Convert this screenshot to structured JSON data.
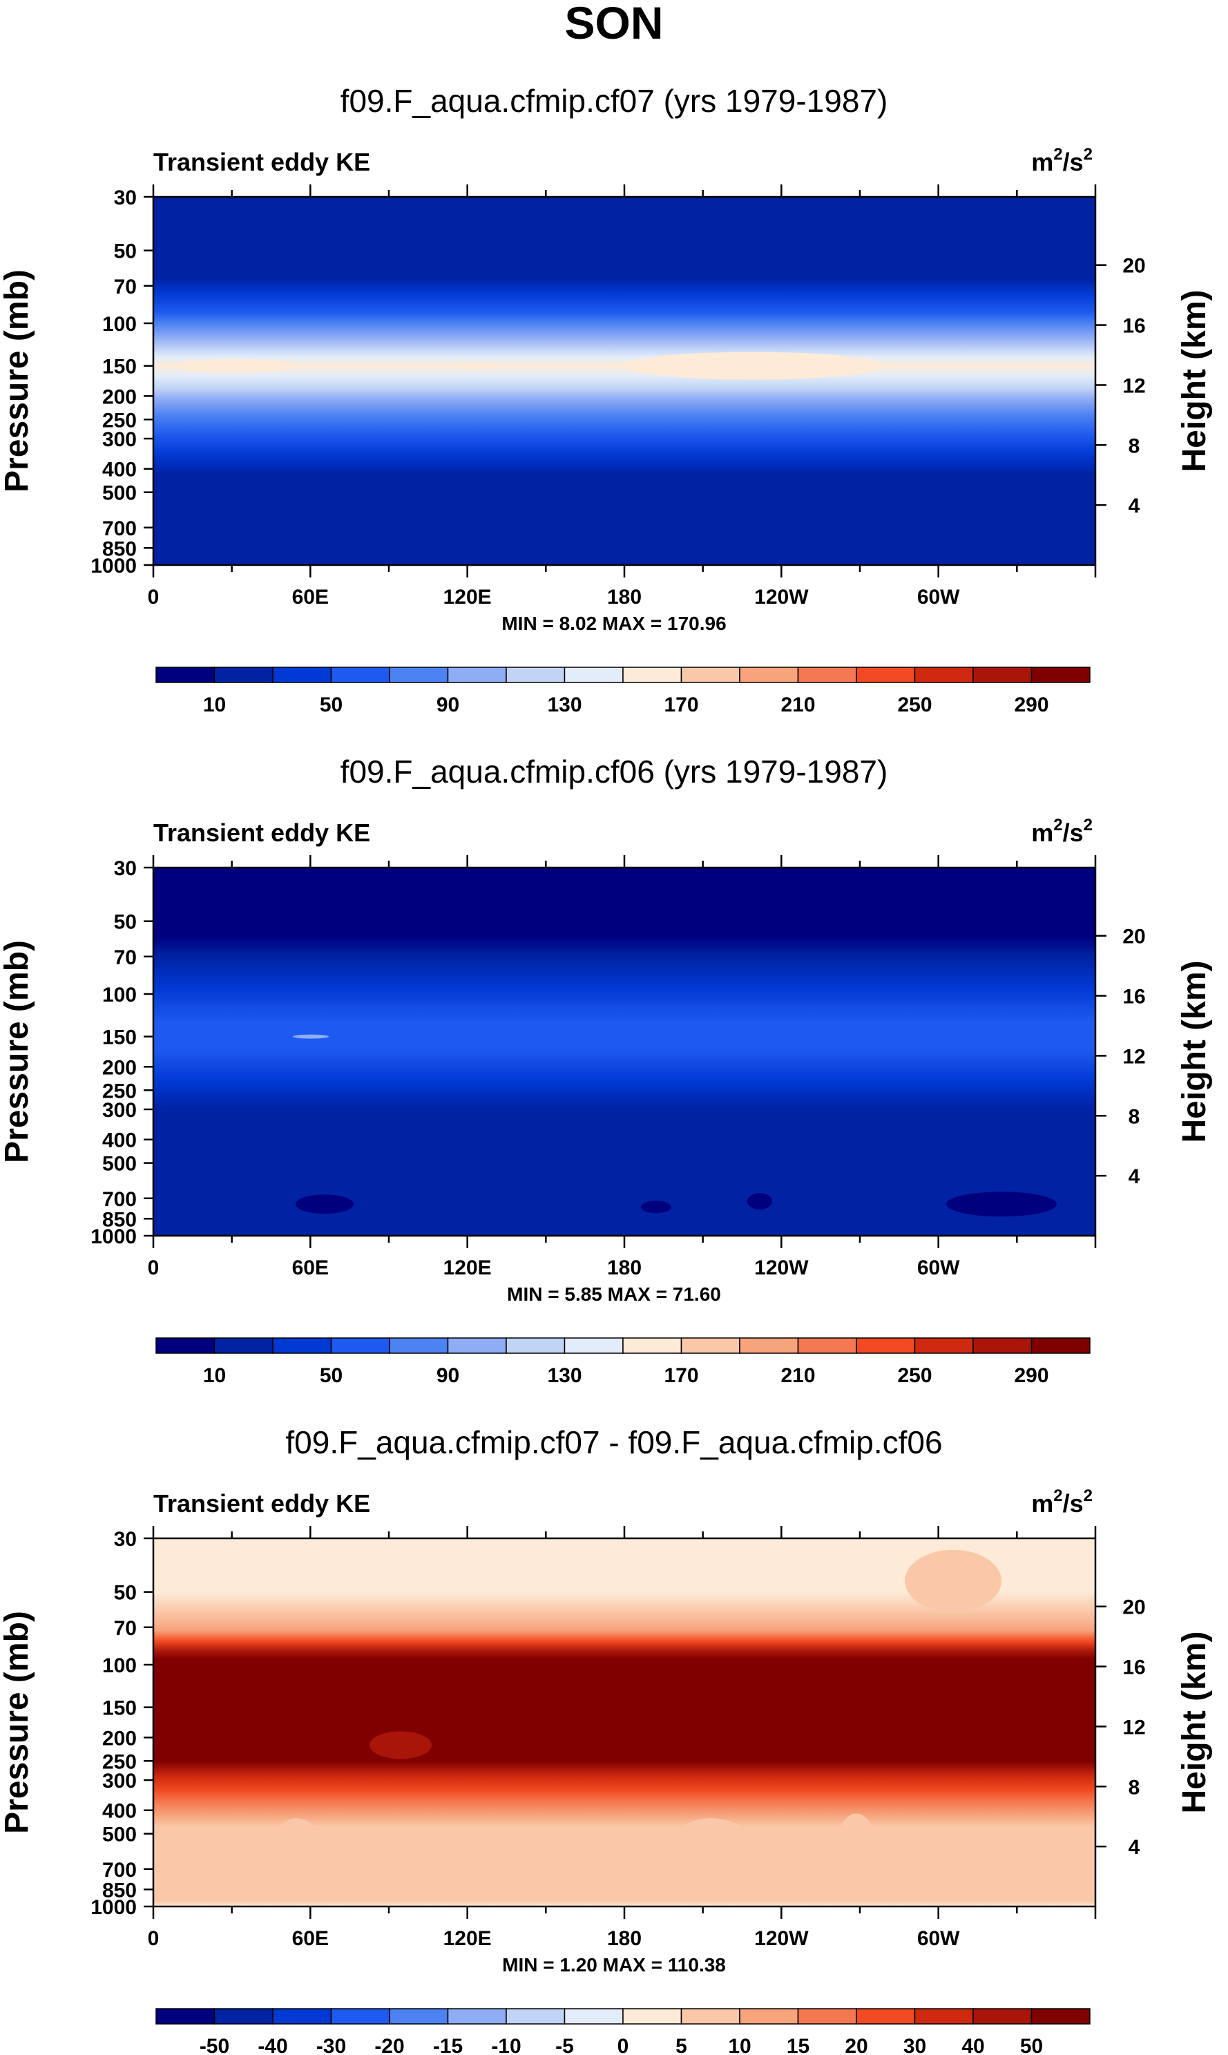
{
  "title": "SON",
  "chart_data": [
    {
      "type": "heatmap",
      "title": "f09.F_aqua.cfmip.cf07 (yrs 1979-1987)",
      "variable": "Transient eddy KE",
      "units": {
        "base": "m",
        "exp1": "2",
        "sep": "/s",
        "exp2": "2"
      },
      "xlabel": "",
      "ylabel": "Pressure (mb)",
      "ylabel_right": "Height (km)",
      "x_ticks": [
        "0",
        "60E",
        "120E",
        "180",
        "120W",
        "60W"
      ],
      "y_ticks": [
        "30",
        "50",
        "70",
        "100",
        "150",
        "200",
        "250",
        "300",
        "400",
        "500",
        "700",
        "850",
        "1000"
      ],
      "y_right_ticks": [
        "20",
        "16",
        "12",
        "8",
        "4"
      ],
      "y_scale": "log",
      "stats_text": "MIN =   8.02   MAX = 170.96",
      "stats": {
        "min": 8.02,
        "max": 170.96
      },
      "colorbar": {
        "labels": [
          "10",
          "50",
          "90",
          "130",
          "170",
          "210",
          "250",
          "290"
        ],
        "colors": [
          "#00007f",
          "#0022a3",
          "#0039d4",
          "#1e5aef",
          "#4d82f2",
          "#8fadf5",
          "#c2d4f6",
          "#e3ecfa",
          "#fdebd8",
          "#fac8a9",
          "#f7a47d",
          "#f47952",
          "#f24a22",
          "#cf2a0f",
          "#a91509",
          "#800000"
        ]
      }
    },
    {
      "type": "heatmap",
      "title": "f09.F_aqua.cfmip.cf06 (yrs 1979-1987)",
      "variable": "Transient eddy KE",
      "units": {
        "base": "m",
        "exp1": "2",
        "sep": "/s",
        "exp2": "2"
      },
      "xlabel": "",
      "ylabel": "Pressure (mb)",
      "ylabel_right": "Height (km)",
      "x_ticks": [
        "0",
        "60E",
        "120E",
        "180",
        "120W",
        "60W"
      ],
      "y_ticks": [
        "30",
        "50",
        "70",
        "100",
        "150",
        "200",
        "250",
        "300",
        "400",
        "500",
        "700",
        "850",
        "1000"
      ],
      "y_right_ticks": [
        "20",
        "16",
        "12",
        "8",
        "4"
      ],
      "y_scale": "log",
      "stats_text": "MIN =   5.85   MAX = 71.60",
      "stats": {
        "min": 5.85,
        "max": 71.6
      },
      "colorbar": {
        "labels": [
          "10",
          "50",
          "90",
          "130",
          "170",
          "210",
          "250",
          "290"
        ],
        "colors": [
          "#00007f",
          "#0022a3",
          "#0039d4",
          "#1e5aef",
          "#4d82f2",
          "#8fadf5",
          "#c2d4f6",
          "#e3ecfa",
          "#fdebd8",
          "#fac8a9",
          "#f7a47d",
          "#f47952",
          "#f24a22",
          "#cf2a0f",
          "#a91509",
          "#800000"
        ]
      }
    },
    {
      "type": "heatmap",
      "title": "f09.F_aqua.cfmip.cf07 - f09.F_aqua.cfmip.cf06",
      "variable": "Transient eddy KE",
      "units": {
        "base": "m",
        "exp1": "2",
        "sep": "/s",
        "exp2": "2"
      },
      "xlabel": "",
      "ylabel": "Pressure (mb)",
      "ylabel_right": "Height (km)",
      "x_ticks": [
        "0",
        "60E",
        "120E",
        "180",
        "120W",
        "60W"
      ],
      "y_ticks": [
        "30",
        "50",
        "70",
        "100",
        "150",
        "200",
        "250",
        "300",
        "400",
        "500",
        "700",
        "850",
        "1000"
      ],
      "y_right_ticks": [
        "20",
        "16",
        "12",
        "8",
        "4"
      ],
      "y_scale": "log",
      "stats_text": "MIN =   1.20   MAX = 110.38",
      "stats": {
        "min": 1.2,
        "max": 110.38
      },
      "colorbar": {
        "labels": [
          "-50",
          "-40",
          "-30",
          "-20",
          "-15",
          "-10",
          "-5",
          "0",
          "5",
          "10",
          "15",
          "20",
          "30",
          "40",
          "50"
        ],
        "colors": [
          "#00007f",
          "#0022a3",
          "#0039d4",
          "#1e5aef",
          "#4d82f2",
          "#8fadf5",
          "#c2d4f6",
          "#e3ecfa",
          "#fdebd8",
          "#fac8a9",
          "#f7a47d",
          "#f47952",
          "#f24a22",
          "#cf2a0f",
          "#a91509",
          "#800000"
        ]
      }
    }
  ]
}
